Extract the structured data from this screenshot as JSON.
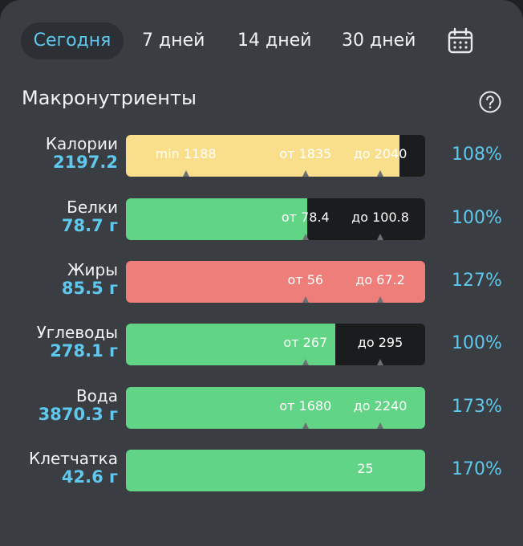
{
  "tabs": [
    {
      "label": "Сегодня",
      "active": true
    },
    {
      "label": "7 дней",
      "active": false
    },
    {
      "label": "14 дней",
      "active": false
    },
    {
      "label": "30 дней",
      "active": false
    }
  ],
  "calendar_icon": "calendar-icon",
  "section": {
    "title": "Макронутриенты",
    "help_icon": "help-circle-icon"
  },
  "colors": {
    "accent": "#5fc8ee",
    "yellow": "#f9de8c",
    "green": "#62d486",
    "red": "#ee7e7a",
    "track": "#1b1c1e"
  },
  "rows": [
    {
      "name": "Калории",
      "value": "2197.2",
      "percent": "108%",
      "fill_fraction": 0.915,
      "fill_color": "#f9de8c",
      "texts": [
        {
          "text": "min 1188",
          "pos": 0.2,
          "dark": false
        },
        {
          "text": "от 1835",
          "pos": 0.6,
          "dark": false
        },
        {
          "text": "до 2040",
          "pos": 0.85,
          "dark": false
        }
      ],
      "ticks": [
        0.2,
        0.6,
        0.85
      ]
    },
    {
      "name": "Белки",
      "value": "78.7 г",
      "percent": "100%",
      "fill_fraction": 0.605,
      "fill_color": "#62d486",
      "texts": [
        {
          "text": "от 78.4",
          "pos": 0.6,
          "dark": false
        },
        {
          "text": "до 100.8",
          "pos": 0.85,
          "dark": false
        }
      ],
      "ticks": [
        0.6,
        0.85
      ]
    },
    {
      "name": "Жиры",
      "value": "85.5 г",
      "percent": "127%",
      "fill_fraction": 1.0,
      "fill_color": "#ee7e7a",
      "texts": [
        {
          "text": "от 56",
          "pos": 0.6,
          "dark": false
        },
        {
          "text": "до 67.2",
          "pos": 0.85,
          "dark": false
        }
      ],
      "ticks": [
        0.6,
        0.85
      ]
    },
    {
      "name": "Углеводы",
      "value": "278.1 г",
      "percent": "100%",
      "fill_fraction": 0.7,
      "fill_color": "#62d486",
      "texts": [
        {
          "text": "от 267",
          "pos": 0.6,
          "dark": false
        },
        {
          "text": "до 295",
          "pos": 0.85,
          "dark": false
        }
      ],
      "ticks": [
        0.6,
        0.85
      ]
    },
    {
      "name": "Вода",
      "value": "3870.3 г",
      "percent": "173%",
      "fill_fraction": 1.0,
      "fill_color": "#62d486",
      "texts": [
        {
          "text": "от 1680",
          "pos": 0.6,
          "dark": false
        },
        {
          "text": "до 2240",
          "pos": 0.85,
          "dark": false
        }
      ],
      "ticks": [
        0.6,
        0.85
      ]
    },
    {
      "name": "Клетчатка",
      "value": "42.6 г",
      "percent": "170%",
      "fill_fraction": 1.0,
      "fill_color": "#62d486",
      "texts": [
        {
          "text": "25",
          "pos": 0.8,
          "dark": false
        }
      ],
      "ticks": []
    }
  ]
}
